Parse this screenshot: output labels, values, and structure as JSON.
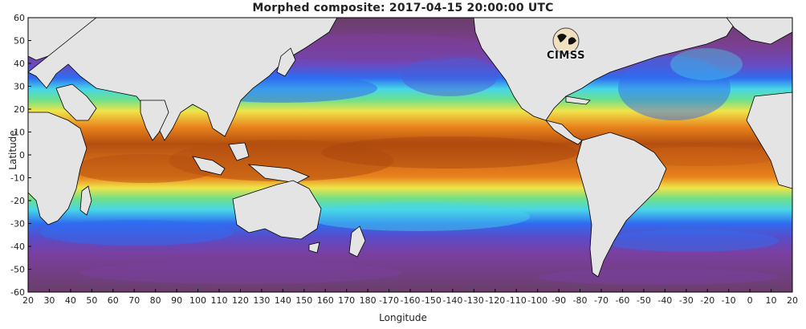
{
  "title": "Morphed composite: 2017-04-15 20:00:00 UTC",
  "xlabel": "Longitude",
  "ylabel": "Latitude",
  "x_ticks": [
    "20",
    "30",
    "40",
    "50",
    "60",
    "70",
    "80",
    "90",
    "100",
    "110",
    "120",
    "130",
    "140",
    "150",
    "160",
    "170",
    "180",
    "-170",
    "-160",
    "-150",
    "-140",
    "-130",
    "-120",
    "-110",
    "-100",
    "-90",
    "-80",
    "-70",
    "-60",
    "-50",
    "-40",
    "-30",
    "-20",
    "-10",
    "0",
    "10",
    "20"
  ],
  "y_ticks": [
    "60",
    "50",
    "40",
    "30",
    "20",
    "10",
    "0",
    "-10",
    "-20",
    "-30",
    "-40",
    "-50",
    "-60"
  ],
  "logo": {
    "text": "CIMSS"
  },
  "colors": {
    "land": "#e4e4e4",
    "coast": "#000000",
    "dry": "#6a3f6a",
    "low": "#7a3fa0",
    "blue": "#2f6cf0",
    "cyan": "#47d6e8",
    "green": "#6fe08a",
    "yellow": "#f0e44a",
    "orange": "#e8821c",
    "dark_orange": "#b44e10"
  }
}
